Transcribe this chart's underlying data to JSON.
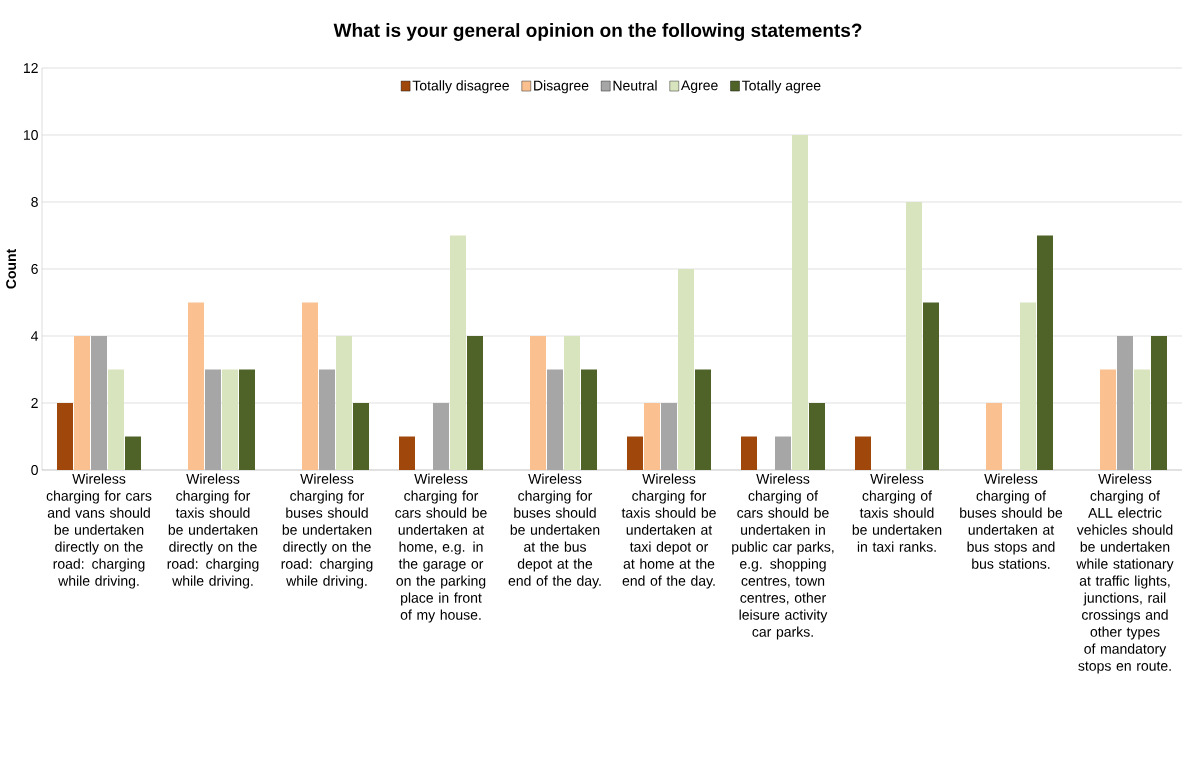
{
  "chart_data": {
    "type": "bar",
    "title": "What is your general opinion on the following statements?",
    "ylabel": "Count",
    "categories": [
      "Wireless charging for cars and vans should be undertaken directly on the road: charging while driving.",
      "Wireless charging for taxis should be undertaken directly on the road: charging while driving.",
      "Wireless charging for buses should be undertaken directly on the road: charging while driving.",
      "Wireless charging for cars should be undertaken at home, e.g. in the garage or on the parking place in front of my house.",
      "Wireless charging for buses should be undertaken at the bus depot at the end of the day.",
      "Wireless charging for taxis should be undertaken at taxi depot or at home at the end of the day.",
      "Wireless charging of cars should be undertaken in public car parks, e.g. shopping centres, town centres, other leisure activity car parks.",
      "Wireless charging of taxis should be undertaken in taxi ranks.",
      "Wireless charging of buses should be undertaken at bus stops and bus stations.",
      "Wireless charging of ALL electric vehicles should be undertaken while stationary at traffic lights, junctions, rail crossings and other types of mandatory stops en route."
    ],
    "series": [
      {
        "name": "Totally disagree",
        "color": "#a0480c",
        "values": [
          2,
          0,
          0,
          1,
          0,
          1,
          1,
          1,
          0,
          0
        ]
      },
      {
        "name": "Disagree",
        "color": "#fac090",
        "values": [
          4,
          5,
          5,
          0,
          4,
          2,
          0,
          0,
          2,
          3
        ]
      },
      {
        "name": "Neutral",
        "color": "#a6a6a6",
        "values": [
          4,
          3,
          3,
          2,
          3,
          2,
          1,
          0,
          0,
          4
        ]
      },
      {
        "name": "Agree",
        "color": "#d7e4bd",
        "values": [
          3,
          3,
          4,
          7,
          4,
          6,
          10,
          8,
          5,
          3
        ]
      },
      {
        "name": "Totally agree",
        "color": "#4f6228",
        "values": [
          1,
          3,
          2,
          4,
          3,
          3,
          2,
          5,
          7,
          4
        ]
      }
    ],
    "ylim": [
      0,
      12
    ],
    "yticks": [
      0,
      2,
      4,
      6,
      8,
      10,
      12
    ],
    "grid": "y",
    "legend": "top"
  }
}
